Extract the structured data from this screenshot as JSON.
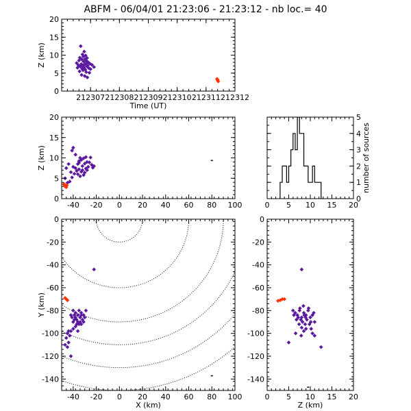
{
  "title": "ABFM - 06/04/01 21:23:06 - 21:23:12 - nb loc.=       40",
  "colors": {
    "points": "#5b1a9e",
    "highlight": "#ff3300",
    "axes": "#000000"
  },
  "chart_data": [
    {
      "id": "time-z",
      "type": "scatter",
      "xlabel": "Time (UT)",
      "ylabel": "Z (km)",
      "xlim": [
        212306.0,
        212312.0
      ],
      "ylim": [
        0,
        20
      ],
      "xticks": [
        212307,
        212308,
        212309,
        212310,
        212311,
        212312
      ],
      "yticks": [
        0,
        5,
        10,
        15,
        20
      ],
      "series": [
        {
          "role": "main",
          "points": [
            [
              212306.52,
              7.8
            ],
            [
              212306.55,
              6.5
            ],
            [
              212306.58,
              7.2
            ],
            [
              212306.6,
              8.5
            ],
            [
              212306.62,
              5.5
            ],
            [
              212306.63,
              9.3
            ],
            [
              212306.65,
              6.8
            ],
            [
              212306.66,
              12.5
            ],
            [
              212306.68,
              7.5
            ],
            [
              212306.69,
              4.5
            ],
            [
              212306.7,
              8.8
            ],
            [
              212306.71,
              6.2
            ],
            [
              212306.72,
              10.2
            ],
            [
              212306.73,
              7.0
            ],
            [
              212306.74,
              5.8
            ],
            [
              212306.75,
              9.6
            ],
            [
              212306.76,
              8.2
            ],
            [
              212306.77,
              6.6
            ],
            [
              212306.78,
              11.0
            ],
            [
              212306.79,
              7.4
            ],
            [
              212306.8,
              4.2
            ],
            [
              212306.81,
              8.9
            ],
            [
              212306.82,
              6.0
            ],
            [
              212306.83,
              9.9
            ],
            [
              212306.84,
              7.7
            ],
            [
              212306.85,
              5.3
            ],
            [
              212306.86,
              8.4
            ],
            [
              212306.87,
              6.9
            ],
            [
              212306.88,
              9.2
            ],
            [
              212306.89,
              3.8
            ],
            [
              212306.9,
              7.1
            ],
            [
              212306.92,
              8.0
            ],
            [
              212306.94,
              6.4
            ],
            [
              212306.96,
              5.1
            ],
            [
              212306.98,
              7.6
            ],
            [
              212307.0,
              6.1
            ],
            [
              212307.05,
              7.3
            ],
            [
              212307.12,
              6.7
            ]
          ]
        },
        {
          "role": "highlight",
          "points": [
            [
              212311.38,
              3.4
            ],
            [
              212311.4,
              3.0
            ],
            [
              212311.42,
              2.7
            ],
            [
              212311.4,
              3.2
            ]
          ]
        }
      ]
    },
    {
      "id": "x-z",
      "type": "scatter",
      "xlabel": "",
      "ylabel": "Z (km)",
      "xlim": [
        -50,
        100
      ],
      "ylim": [
        0,
        20
      ],
      "xticks": [
        -40,
        -20,
        0,
        20,
        40,
        60,
        80,
        100
      ],
      "yticks": [
        0,
        5,
        10,
        15,
        20
      ],
      "series": [
        {
          "role": "main",
          "points": [
            [
              -41,
              11.8
            ],
            [
              -40,
              12.5
            ],
            [
              -38,
              10.8
            ],
            [
              -36,
              8.5
            ],
            [
              -35,
              9.2
            ],
            [
              -34,
              10.0
            ],
            [
              -33,
              9.5
            ],
            [
              -32,
              8.0
            ],
            [
              -31,
              9.9
            ],
            [
              -30,
              8.6
            ],
            [
              -29,
              10.2
            ],
            [
              -28,
              9.0
            ],
            [
              -27,
              7.8
            ],
            [
              -26,
              8.9
            ],
            [
              -25,
              10.1
            ],
            [
              -24,
              8.3
            ],
            [
              -23,
              7.6
            ],
            [
              -22,
              8.0
            ],
            [
              -38,
              7.5
            ],
            [
              -37,
              6.8
            ],
            [
              -36,
              6.0
            ],
            [
              -35,
              7.2
            ],
            [
              -34,
              5.5
            ],
            [
              -33,
              6.6
            ],
            [
              -32,
              7.0
            ],
            [
              -31,
              5.8
            ],
            [
              -30,
              6.4
            ],
            [
              -29,
              7.4
            ],
            [
              -42,
              6.5
            ],
            [
              -41,
              5.2
            ],
            [
              -40,
              7.8
            ],
            [
              -39,
              6.1
            ],
            [
              -43,
              4.2
            ],
            [
              -44,
              8.5
            ],
            [
              -45,
              3.9
            ],
            [
              -46,
              7.5
            ],
            [
              -47,
              5.0
            ],
            [
              -48,
              3.5
            ],
            [
              -35,
              8.8
            ],
            [
              -28,
              7.0
            ]
          ]
        },
        {
          "role": "highlight",
          "points": [
            [
              -48,
              3.6
            ],
            [
              -47,
              3.0
            ],
            [
              -46,
              2.8
            ],
            [
              -45.5,
              3.3
            ]
          ]
        },
        {
          "role": "isolated",
          "points": [
            [
              80,
              9.4
            ]
          ]
        }
      ]
    },
    {
      "id": "histogram",
      "type": "bar",
      "xlabel": "",
      "ylabel": "number of sources",
      "xlim": [
        0,
        20
      ],
      "ylim": [
        0,
        5
      ],
      "xticks": [
        0,
        5,
        10,
        15,
        20
      ],
      "yticks": [
        0,
        1,
        2,
        3,
        4,
        5
      ],
      "bin_edges": [
        3.0,
        3.5,
        4.0,
        4.5,
        5.0,
        5.5,
        6.0,
        6.5,
        7.0,
        7.5,
        8.0,
        8.5,
        9.0,
        9.5,
        10.0,
        10.5,
        11.0,
        11.5,
        12.0,
        12.5,
        13.0
      ],
      "counts": [
        1,
        2,
        2,
        1,
        2,
        3,
        4,
        3,
        5,
        4,
        4,
        2,
        2,
        1,
        1,
        2,
        1,
        1,
        1,
        0
      ]
    },
    {
      "id": "x-y",
      "type": "scatter",
      "xlabel": "X (km)",
      "ylabel": "Y (km)",
      "xlim": [
        -50,
        100
      ],
      "ylim": [
        -150,
        0
      ],
      "xticks": [
        -40,
        -20,
        0,
        20,
        40,
        60,
        80,
        100
      ],
      "yticks": [
        -140,
        -120,
        -100,
        -80,
        -60,
        -40,
        -20,
        0
      ],
      "range_rings": {
        "center": [
          0,
          0
        ],
        "radii": [
          20,
          60,
          90,
          110,
          130,
          150
        ]
      },
      "series": [
        {
          "role": "main",
          "points": [
            [
              -22,
              -44
            ],
            [
              -40,
              -80
            ],
            [
              -38,
              -82
            ],
            [
              -36,
              -84
            ],
            [
              -35,
              -80
            ],
            [
              -34,
              -86
            ],
            [
              -33,
              -82
            ],
            [
              -32,
              -88
            ],
            [
              -31,
              -84
            ],
            [
              -30,
              -86
            ],
            [
              -29,
              -80
            ],
            [
              -38,
              -86
            ],
            [
              -37,
              -88
            ],
            [
              -36,
              -90
            ],
            [
              -35,
              -92
            ],
            [
              -40,
              -90
            ],
            [
              -39,
              -88
            ],
            [
              -41,
              -86
            ],
            [
              -42,
              -84
            ],
            [
              -34,
              -90
            ],
            [
              -33,
              -92
            ],
            [
              -38,
              -94
            ],
            [
              -40,
              -96
            ],
            [
              -42,
              -98
            ],
            [
              -44,
              -98
            ],
            [
              -45,
              -100
            ],
            [
              -43,
              -102
            ],
            [
              -46,
              -104
            ],
            [
              -44,
              -108
            ],
            [
              -47,
              -110
            ],
            [
              -45,
              -112
            ],
            [
              -42,
              -120
            ],
            [
              -36,
              -98
            ],
            [
              -34,
              -86
            ],
            [
              -37,
              -92
            ],
            [
              -39,
              -84
            ],
            [
              -33,
              -84
            ],
            [
              -31,
              -90
            ]
          ]
        },
        {
          "role": "highlight",
          "points": [
            [
              -46,
              -70
            ],
            [
              -45,
              -71
            ],
            [
              -47,
              -69
            ]
          ]
        },
        {
          "role": "isolated",
          "points": [
            [
              80,
              -137
            ]
          ]
        }
      ]
    },
    {
      "id": "z-y",
      "type": "scatter",
      "xlabel": "Z (km)",
      "ylabel": "",
      "xlim": [
        0,
        20
      ],
      "ylim": [
        -150,
        0
      ],
      "xticks": [
        0,
        5,
        10,
        15,
        20
      ],
      "yticks": [
        -140,
        -120,
        -100,
        -80,
        -60,
        -40,
        -20,
        0
      ],
      "series": [
        {
          "role": "main",
          "points": [
            [
              8.0,
              -44
            ],
            [
              6.0,
              -80
            ],
            [
              6.5,
              -82
            ],
            [
              7.0,
              -84
            ],
            [
              7.5,
              -80
            ],
            [
              8.0,
              -86
            ],
            [
              8.5,
              -82
            ],
            [
              9.0,
              -84
            ],
            [
              9.5,
              -80
            ],
            [
              10.0,
              -86
            ],
            [
              10.5,
              -84
            ],
            [
              11.0,
              -90
            ],
            [
              7.8,
              -88
            ],
            [
              8.2,
              -90
            ],
            [
              8.8,
              -92
            ],
            [
              7.2,
              -86
            ],
            [
              6.8,
              -88
            ],
            [
              9.2,
              -88
            ],
            [
              9.8,
              -92
            ],
            [
              10.2,
              -96
            ],
            [
              8.0,
              -95
            ],
            [
              8.5,
              -98
            ],
            [
              6.6,
              -100
            ],
            [
              7.9,
              -102
            ],
            [
              5.0,
              -108
            ],
            [
              11.0,
              -102
            ],
            [
              12.5,
              -112
            ],
            [
              10.5,
              -100
            ],
            [
              9.0,
              -96
            ],
            [
              8.6,
              -84
            ],
            [
              7.6,
              -78
            ],
            [
              10.8,
              -82
            ],
            [
              8.4,
              -76
            ],
            [
              6.2,
              -84
            ],
            [
              9.6,
              -78
            ],
            [
              7.4,
              -92
            ],
            [
              8.9,
              -86
            ],
            [
              10.1,
              -90
            ]
          ]
        },
        {
          "role": "highlight",
          "points": [
            [
              3.0,
              -71
            ],
            [
              3.5,
              -70
            ],
            [
              2.5,
              -71.5
            ],
            [
              4.0,
              -70
            ]
          ]
        },
        {
          "role": "isolated",
          "points": [
            [
              9.5,
              -147
            ]
          ]
        }
      ]
    }
  ]
}
